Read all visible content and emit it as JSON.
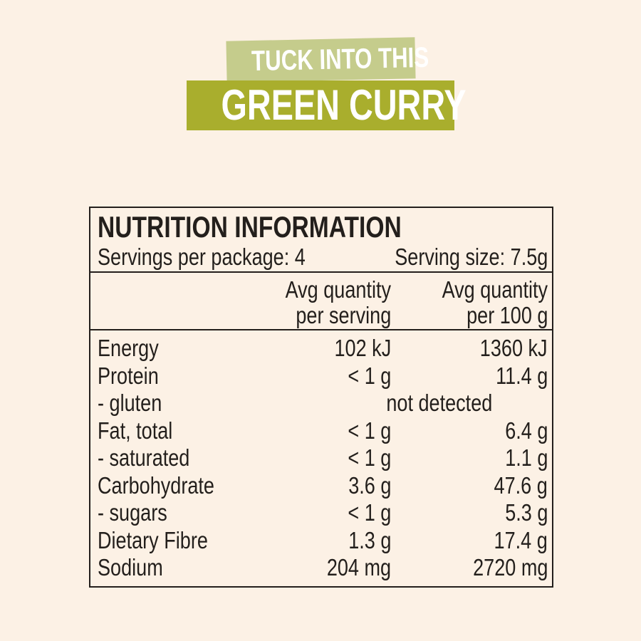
{
  "colors": {
    "background": "#fcf1e5",
    "banner_light": "#c5cc8c",
    "banner_dark": "#a9ae2d",
    "text": "#231f1c"
  },
  "banner": {
    "line1": "TUCK INTO THIS",
    "line2": "GREEN CURRY"
  },
  "panel": {
    "title": "NUTRITION INFORMATION",
    "servings_per_package": "Servings per package: 4",
    "serving_size": "Serving size: 7.5g",
    "headers": [
      {
        "line1": "Avg quantity",
        "line2": "per serving"
      },
      {
        "line1": "Avg quantity",
        "line2": "per 100 g"
      }
    ],
    "rows": [
      {
        "name": "Energy",
        "per_serving": "102 kJ",
        "per_100g": "1360 kJ"
      },
      {
        "name": "Protein",
        "per_serving": "< 1 g",
        "per_100g": "11.4 g"
      },
      {
        "name": "- gluten",
        "combined": "not detected"
      },
      {
        "name": "Fat, total",
        "per_serving": "< 1 g",
        "per_100g": "6.4 g"
      },
      {
        "name": "- saturated",
        "per_serving": "< 1 g",
        "per_100g": "1.1 g"
      },
      {
        "name": "Carbohydrate",
        "per_serving": "3.6 g",
        "per_100g": "47.6 g"
      },
      {
        "name": "- sugars",
        "per_serving": "< 1 g",
        "per_100g": "5.3 g"
      },
      {
        "name": "Dietary Fibre",
        "per_serving": "1.3 g",
        "per_100g": "17.4 g"
      },
      {
        "name": "Sodium",
        "per_serving": "204 mg",
        "per_100g": "2720 mg"
      }
    ]
  }
}
